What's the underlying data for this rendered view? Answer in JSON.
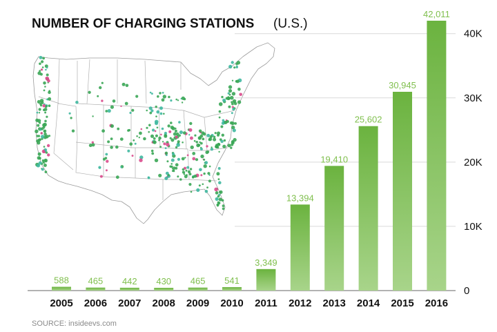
{
  "chart_data": {
    "type": "bar",
    "title": "NUMBER OF CHARGING STATIONS",
    "subtitle": "(U.S.)",
    "categories": [
      "2005",
      "2006",
      "2007",
      "2008",
      "2009",
      "2010",
      "2011",
      "2012",
      "2013",
      "2014",
      "2015",
      "2016"
    ],
    "values": [
      588,
      465,
      442,
      430,
      465,
      541,
      3349,
      13394,
      19410,
      25602,
      30945,
      42011
    ],
    "data_labels": [
      "588",
      "465",
      "442",
      "430",
      "465",
      "541",
      "3,349",
      "13,394",
      "19,410",
      "25,602",
      "30,945",
      "42,011"
    ],
    "ylim": [
      0,
      42011
    ],
    "yticks": [
      0,
      10000,
      20000,
      30000,
      40000
    ],
    "ytick_labels": [
      "0",
      "10K",
      "20K",
      "30K",
      "40K"
    ],
    "y_axis_side": "right",
    "xlabel": "",
    "ylabel": "",
    "grid": true,
    "bar_color_top": "#6bb33f",
    "bar_color_bottom": "#a8d48a",
    "label_color": "#7fbf4d",
    "source": "SOURCE: insideevs.com"
  },
  "map": {
    "dot_color_green": "#3aa655",
    "dot_color_teal": "#3fb8a0",
    "dot_color_pink": "#d94a8c"
  }
}
